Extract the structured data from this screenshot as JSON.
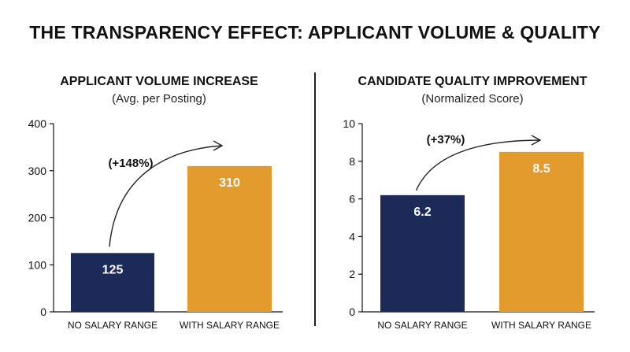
{
  "title": "THE TRANSPARENCY EFFECT: APPLICANT VOLUME & QUALITY",
  "colors": {
    "no_range": "#1b2a57",
    "with_range": "#e39b2e",
    "axis": "#111111"
  },
  "chart_data": [
    {
      "type": "bar",
      "title": "APPLICANT VOLUME INCREASE",
      "subtitle": "(Avg. per Posting)",
      "categories": [
        "NO SALARY RANGE",
        "WITH SALARY RANGE"
      ],
      "values": [
        125,
        310
      ],
      "value_labels": [
        "125",
        "310"
      ],
      "ylim": [
        0,
        400
      ],
      "yticks": [
        0,
        100,
        200,
        300,
        400
      ],
      "grid": false,
      "annotation": "(+148%)"
    },
    {
      "type": "bar",
      "title": "CANDIDATE QUALITY IMPROVEMENT",
      "subtitle": "(Normalized Score)",
      "categories": [
        "NO SALARY RANGE",
        "WITH SALARY RANGE"
      ],
      "values": [
        6.2,
        8.5
      ],
      "value_labels": [
        "6.2",
        "8.5"
      ],
      "ylim": [
        0,
        10
      ],
      "yticks": [
        0,
        2,
        4,
        6,
        8,
        10
      ],
      "grid": false,
      "annotation": "(+37%)"
    }
  ]
}
